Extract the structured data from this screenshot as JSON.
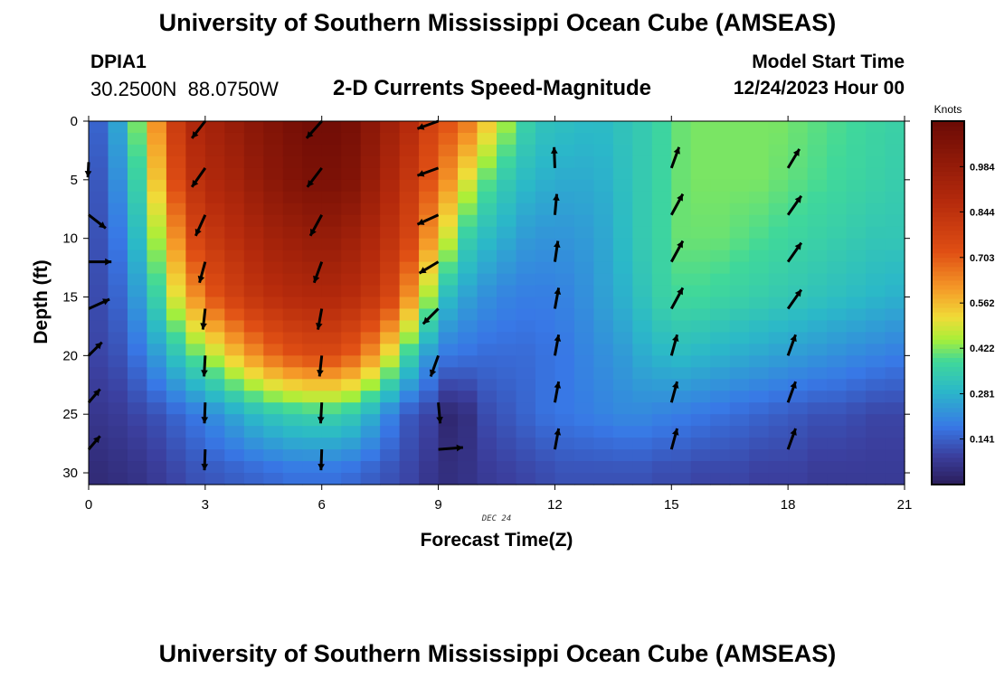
{
  "header": {
    "title_top": "University of Southern Mississippi Ocean Cube (AMSEAS)",
    "title_bottom": "University of Southern Mississippi Ocean Cube (AMSEAS)",
    "station": "DPIA1",
    "lat_lon": "30.2500N  88.0750W",
    "subtitle": "2-D Currents Speed-Magnitude",
    "start_label": "Model Start Time",
    "start_value": "12/24/2023 Hour 00"
  },
  "chart_data": {
    "type": "heatmap",
    "title": "2-D Currents Speed-Magnitude",
    "xlabel": "Forecast Time(Z)",
    "ylabel": "Depth (ft)",
    "date_label": "DEC 24",
    "xlim": [
      0,
      21
    ],
    "ylim": [
      0,
      31
    ],
    "x_ticks": [
      0,
      3,
      6,
      9,
      12,
      15,
      18,
      21
    ],
    "y_ticks": [
      0,
      5,
      10,
      15,
      20,
      25,
      30
    ],
    "colorbar": {
      "label": "Knots",
      "min": 0.0,
      "max": 1.125,
      "ticks": [
        0.141,
        0.281,
        0.422,
        0.562,
        0.703,
        0.844,
        0.984
      ]
    },
    "speed_grid": {
      "time": [
        0,
        0.5,
        1,
        1.5,
        2,
        2.5,
        3,
        3.5,
        4,
        4.5,
        5,
        5.5,
        6,
        6.5,
        7,
        7.5,
        8,
        8.5,
        9,
        9.5,
        10,
        10.5,
        11,
        11.5,
        12,
        12.5,
        13,
        13.5,
        14,
        14.5,
        15,
        15.5,
        16,
        16.5,
        17,
        17.5,
        18,
        18.5,
        19,
        19.5,
        20,
        20.5
      ],
      "depth": [
        0,
        5,
        10,
        15,
        20,
        25,
        30
      ],
      "values": [
        [
          0.15,
          0.26,
          0.42,
          0.62,
          0.8,
          0.9,
          0.94,
          0.98,
          1.02,
          1.05,
          1.08,
          1.1,
          1.1,
          1.08,
          1.02,
          0.95,
          0.88,
          0.78,
          0.72,
          0.66,
          0.55,
          0.45,
          0.36,
          0.32,
          0.31,
          0.3,
          0.3,
          0.32,
          0.34,
          0.37,
          0.41,
          0.42,
          0.42,
          0.42,
          0.42,
          0.42,
          0.41,
          0.4,
          0.39,
          0.38,
          0.37,
          0.36
        ],
        [
          0.13,
          0.22,
          0.36,
          0.55,
          0.74,
          0.85,
          0.9,
          0.93,
          0.98,
          1.02,
          1.05,
          1.07,
          1.07,
          1.05,
          0.98,
          0.9,
          0.82,
          0.72,
          0.62,
          0.5,
          0.4,
          0.34,
          0.3,
          0.28,
          0.27,
          0.27,
          0.28,
          0.31,
          0.34,
          0.37,
          0.41,
          0.42,
          0.42,
          0.42,
          0.42,
          0.41,
          0.4,
          0.39,
          0.38,
          0.37,
          0.36,
          0.35
        ],
        [
          0.12,
          0.18,
          0.3,
          0.45,
          0.62,
          0.76,
          0.82,
          0.86,
          0.9,
          0.94,
          0.96,
          0.98,
          0.98,
          0.95,
          0.9,
          0.84,
          0.76,
          0.62,
          0.48,
          0.35,
          0.3,
          0.27,
          0.24,
          0.23,
          0.23,
          0.24,
          0.26,
          0.3,
          0.34,
          0.37,
          0.41,
          0.41,
          0.41,
          0.4,
          0.39,
          0.38,
          0.37,
          0.36,
          0.35,
          0.34,
          0.33,
          0.33
        ],
        [
          0.11,
          0.15,
          0.24,
          0.36,
          0.5,
          0.62,
          0.72,
          0.78,
          0.83,
          0.86,
          0.88,
          0.89,
          0.89,
          0.87,
          0.83,
          0.76,
          0.62,
          0.45,
          0.3,
          0.25,
          0.22,
          0.2,
          0.19,
          0.19,
          0.2,
          0.22,
          0.25,
          0.28,
          0.32,
          0.36,
          0.38,
          0.38,
          0.37,
          0.36,
          0.35,
          0.34,
          0.33,
          0.32,
          0.31,
          0.3,
          0.29,
          0.28
        ],
        [
          0.1,
          0.12,
          0.17,
          0.24,
          0.32,
          0.4,
          0.47,
          0.55,
          0.62,
          0.68,
          0.72,
          0.74,
          0.74,
          0.7,
          0.62,
          0.5,
          0.36,
          0.24,
          0.18,
          0.17,
          0.16,
          0.16,
          0.16,
          0.17,
          0.18,
          0.2,
          0.22,
          0.24,
          0.27,
          0.29,
          0.3,
          0.29,
          0.28,
          0.27,
          0.26,
          0.25,
          0.24,
          0.23,
          0.22,
          0.21,
          0.2,
          0.19
        ],
        [
          0.07,
          0.08,
          0.1,
          0.12,
          0.15,
          0.18,
          0.22,
          0.26,
          0.3,
          0.33,
          0.35,
          0.36,
          0.36,
          0.34,
          0.28,
          0.2,
          0.13,
          0.1,
          0.03,
          0.05,
          0.11,
          0.13,
          0.15,
          0.17,
          0.18,
          0.19,
          0.2,
          0.21,
          0.21,
          0.2,
          0.19,
          0.18,
          0.17,
          0.16,
          0.15,
          0.14,
          0.13,
          0.12,
          0.12,
          0.11,
          0.1,
          0.1
        ],
        [
          0.04,
          0.05,
          0.06,
          0.08,
          0.1,
          0.12,
          0.13,
          0.14,
          0.15,
          0.16,
          0.17,
          0.17,
          0.17,
          0.16,
          0.14,
          0.12,
          0.1,
          0.07,
          0.05,
          0.06,
          0.08,
          0.09,
          0.1,
          0.11,
          0.12,
          0.12,
          0.12,
          0.12,
          0.12,
          0.11,
          0.11,
          0.1,
          0.1,
          0.1,
          0.09,
          0.09,
          0.09,
          0.08,
          0.08,
          0.08,
          0.08,
          0.08
        ]
      ]
    },
    "vectors": [
      {
        "t": 0,
        "d": 3.5,
        "u": -0.02,
        "v": -0.4
      },
      {
        "t": 0,
        "d": 8,
        "u": 0.45,
        "v": -0.35
      },
      {
        "t": 0,
        "d": 12,
        "u": 0.6,
        "v": 0
      },
      {
        "t": 0,
        "d": 16,
        "u": 0.55,
        "v": 0.25
      },
      {
        "t": 0,
        "d": 20,
        "u": 0.35,
        "v": 0.35
      },
      {
        "t": 0,
        "d": 24,
        "u": 0.3,
        "v": 0.35
      },
      {
        "t": 0,
        "d": 28,
        "u": 0.3,
        "v": 0.35
      },
      {
        "t": 3,
        "d": 0,
        "u": -0.35,
        "v": -0.45
      },
      {
        "t": 3,
        "d": 4,
        "u": -0.35,
        "v": -0.5
      },
      {
        "t": 3,
        "d": 8,
        "u": -0.25,
        "v": -0.55
      },
      {
        "t": 3,
        "d": 12,
        "u": -0.15,
        "v": -0.55
      },
      {
        "t": 3,
        "d": 16,
        "u": -0.06,
        "v": -0.55
      },
      {
        "t": 3,
        "d": 20,
        "u": -0.03,
        "v": -0.55
      },
      {
        "t": 3,
        "d": 24,
        "u": -0.02,
        "v": -0.55
      },
      {
        "t": 3,
        "d": 28,
        "u": -0.02,
        "v": -0.55
      },
      {
        "t": 6,
        "d": 0,
        "u": -0.4,
        "v": -0.45
      },
      {
        "t": 6,
        "d": 4,
        "u": -0.38,
        "v": -0.5
      },
      {
        "t": 6,
        "d": 8,
        "u": -0.3,
        "v": -0.55
      },
      {
        "t": 6,
        "d": 12,
        "u": -0.2,
        "v": -0.55
      },
      {
        "t": 6,
        "d": 16,
        "u": -0.1,
        "v": -0.55
      },
      {
        "t": 6,
        "d": 20,
        "u": -0.06,
        "v": -0.55
      },
      {
        "t": 6,
        "d": 24,
        "u": -0.03,
        "v": -0.55
      },
      {
        "t": 6,
        "d": 28,
        "u": -0.02,
        "v": -0.55
      },
      {
        "t": 9,
        "d": 0,
        "u": -0.55,
        "v": -0.2
      },
      {
        "t": 9,
        "d": 4,
        "u": -0.55,
        "v": -0.2
      },
      {
        "t": 9,
        "d": 8,
        "u": -0.55,
        "v": -0.25
      },
      {
        "t": 9,
        "d": 12,
        "u": -0.5,
        "v": -0.3
      },
      {
        "t": 9,
        "d": 16,
        "u": -0.4,
        "v": -0.4
      },
      {
        "t": 9,
        "d": 20,
        "u": -0.2,
        "v": -0.55
      },
      {
        "t": 9,
        "d": 24,
        "u": 0.05,
        "v": -0.55
      },
      {
        "t": 9,
        "d": 28,
        "u": 0.65,
        "v": 0.05
      },
      {
        "t": 12,
        "d": 4,
        "u": -0.02,
        "v": 0.55
      },
      {
        "t": 12,
        "d": 8,
        "u": 0.05,
        "v": 0.55
      },
      {
        "t": 12,
        "d": 12,
        "u": 0.08,
        "v": 0.55
      },
      {
        "t": 12,
        "d": 16,
        "u": 0.1,
        "v": 0.55
      },
      {
        "t": 12,
        "d": 20,
        "u": 0.1,
        "v": 0.55
      },
      {
        "t": 12,
        "d": 24,
        "u": 0.1,
        "v": 0.55
      },
      {
        "t": 12,
        "d": 28,
        "u": 0.1,
        "v": 0.55
      },
      {
        "t": 15,
        "d": 4,
        "u": 0.2,
        "v": 0.55
      },
      {
        "t": 15,
        "d": 8,
        "u": 0.3,
        "v": 0.55
      },
      {
        "t": 15,
        "d": 12,
        "u": 0.3,
        "v": 0.55
      },
      {
        "t": 15,
        "d": 16,
        "u": 0.3,
        "v": 0.55
      },
      {
        "t": 15,
        "d": 20,
        "u": 0.15,
        "v": 0.55
      },
      {
        "t": 15,
        "d": 24,
        "u": 0.15,
        "v": 0.55
      },
      {
        "t": 15,
        "d": 28,
        "u": 0.15,
        "v": 0.55
      },
      {
        "t": 18,
        "d": 4,
        "u": 0.3,
        "v": 0.5
      },
      {
        "t": 18,
        "d": 8,
        "u": 0.35,
        "v": 0.5
      },
      {
        "t": 18,
        "d": 12,
        "u": 0.35,
        "v": 0.5
      },
      {
        "t": 18,
        "d": 16,
        "u": 0.35,
        "v": 0.5
      },
      {
        "t": 18,
        "d": 20,
        "u": 0.2,
        "v": 0.55
      },
      {
        "t": 18,
        "d": 24,
        "u": 0.2,
        "v": 0.55
      },
      {
        "t": 18,
        "d": 28,
        "u": 0.2,
        "v": 0.55
      }
    ]
  }
}
